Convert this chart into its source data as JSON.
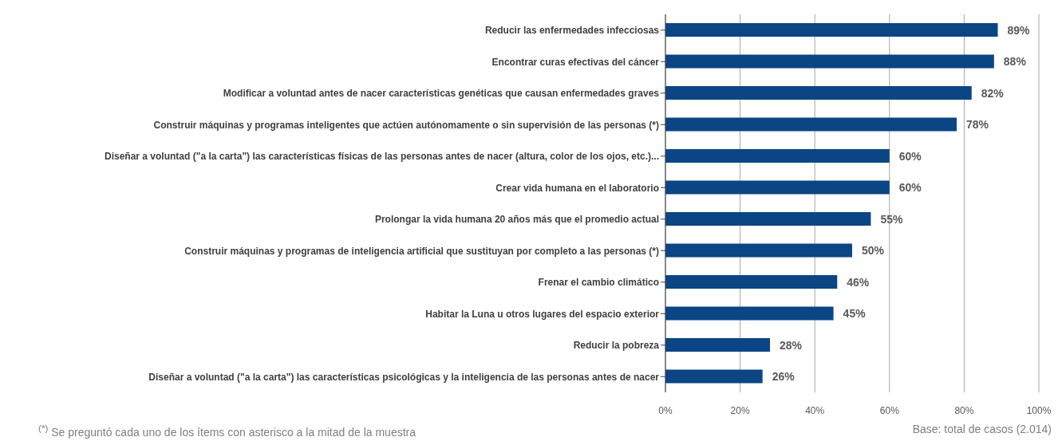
{
  "chart_data": {
    "type": "bar",
    "orientation": "horizontal",
    "categories": [
      "Reducir las enfermedades infecciosas",
      "Encontrar curas efectivas del cáncer",
      "Modificar a voluntad antes de nacer características genéticas que causan enfermedades graves",
      "Construir máquinas y programas inteligentes que actúen autónomamente o sin supervisión de las personas (*)",
      "Diseñar a voluntad (\"a la carta\") las características físicas de las personas antes de nacer (altura, color de los ojos, etc.)...",
      "Crear vida humana en el laboratorio",
      "Prolongar la vida humana 20 años más que el promedio actual",
      "Construir máquinas y programas de inteligencia artificial que sustituyan por completo a las personas (*)",
      "Frenar el cambio climático",
      "Habitar la Luna u otros lugares del espacio exterior",
      "Reducir la pobreza",
      "Diseñar a voluntad (\"a la carta\") las características psicológicas y la inteligencia de las personas antes de nacer"
    ],
    "values": [
      89,
      88,
      82,
      78,
      60,
      60,
      55,
      50,
      46,
      45,
      28,
      26
    ],
    "value_labels": [
      "89%",
      "88%",
      "82%",
      "78%",
      "60%",
      "60%",
      "55%",
      "50%",
      "46%",
      "45%",
      "28%",
      "26%"
    ],
    "color": "#0b4584",
    "xlim": [
      0,
      100
    ],
    "xticks": [
      {
        "value": 0,
        "label": "0%"
      },
      {
        "value": 20,
        "label": "20%"
      },
      {
        "value": 40,
        "label": "40%"
      },
      {
        "value": 60,
        "label": "60%"
      },
      {
        "value": 80,
        "label": "80%"
      },
      {
        "value": 100,
        "label": "100%"
      }
    ],
    "grid": "x",
    "legend": false,
    "annotations": [
      "$^{(*)}$ Se preguntó cada uno de los ítems con asterisco a la mitad de la muestra",
      "Base: total de casos (2.014)"
    ]
  }
}
